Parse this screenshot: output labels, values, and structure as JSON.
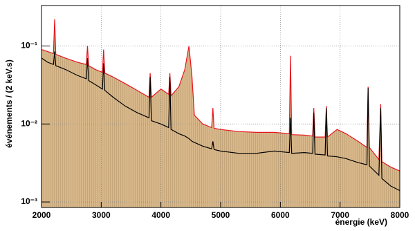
{
  "chart_data": {
    "type": "line",
    "ylabel": "événements / (2 keV.s)",
    "xlabel": "énergie (keV)",
    "log_y": true,
    "grid": true,
    "fill_color": "#d8b88a",
    "xlim": [
      2000,
      8000
    ],
    "xticks": [
      2000,
      3000,
      4000,
      5000,
      6000,
      7000,
      8000
    ],
    "ylim": [
      0.00085,
      0.33
    ],
    "yticks": [
      {
        "value": 0.001,
        "label": "10⁻³"
      },
      {
        "value": 0.01,
        "label": "10⁻²"
      },
      {
        "value": 0.1,
        "label": "10⁻¹"
      }
    ],
    "x": [
      2000,
      2100,
      2200,
      2220,
      2240,
      2400,
      2600,
      2750,
      2770,
      2790,
      2900,
      3020,
      3040,
      3060,
      3200,
      3400,
      3600,
      3800,
      3820,
      3840,
      4000,
      4130,
      4150,
      4170,
      4300,
      4400,
      4470,
      4520,
      4560,
      4700,
      4850,
      4870,
      4890,
      5000,
      5300,
      5600,
      5900,
      6150,
      6170,
      6190,
      6400,
      6540,
      6560,
      6580,
      6750,
      6770,
      6790,
      6950,
      7100,
      7300,
      7450,
      7470,
      7490,
      7650,
      7680,
      7700,
      7850,
      8000
    ],
    "series": [
      {
        "color": "#e8141c",
        "values": [
          0.09,
          0.085,
          0.08,
          0.22,
          0.078,
          0.07,
          0.062,
          0.058,
          0.1,
          0.056,
          0.05,
          0.046,
          0.09,
          0.045,
          0.04,
          0.033,
          0.027,
          0.022,
          0.045,
          0.022,
          0.028,
          0.024,
          0.045,
          0.023,
          0.03,
          0.05,
          0.1,
          0.04,
          0.013,
          0.01,
          0.009,
          0.016,
          0.0088,
          0.0085,
          0.008,
          0.0078,
          0.0078,
          0.0075,
          0.075,
          0.0073,
          0.0072,
          0.007,
          0.016,
          0.0068,
          0.0068,
          0.017,
          0.0068,
          0.0085,
          0.0075,
          0.006,
          0.005,
          0.03,
          0.005,
          0.0035,
          0.018,
          0.0033,
          0.0028,
          0.0025
        ]
      },
      {
        "color": "#000000",
        "values": [
          0.07,
          0.062,
          0.058,
          0.085,
          0.056,
          0.05,
          0.042,
          0.038,
          0.07,
          0.036,
          0.032,
          0.028,
          0.06,
          0.027,
          0.022,
          0.017,
          0.014,
          0.012,
          0.04,
          0.011,
          0.01,
          0.009,
          0.04,
          0.0085,
          0.0075,
          0.007,
          0.0065,
          0.006,
          0.0058,
          0.0052,
          0.0048,
          0.006,
          0.0047,
          0.0045,
          0.0042,
          0.0042,
          0.0045,
          0.0043,
          0.012,
          0.0042,
          0.0043,
          0.0042,
          0.014,
          0.0041,
          0.004,
          0.016,
          0.0039,
          0.0038,
          0.0036,
          0.0032,
          0.003,
          0.029,
          0.0029,
          0.0022,
          0.016,
          0.002,
          0.0016,
          0.0014
        ]
      }
    ]
  }
}
